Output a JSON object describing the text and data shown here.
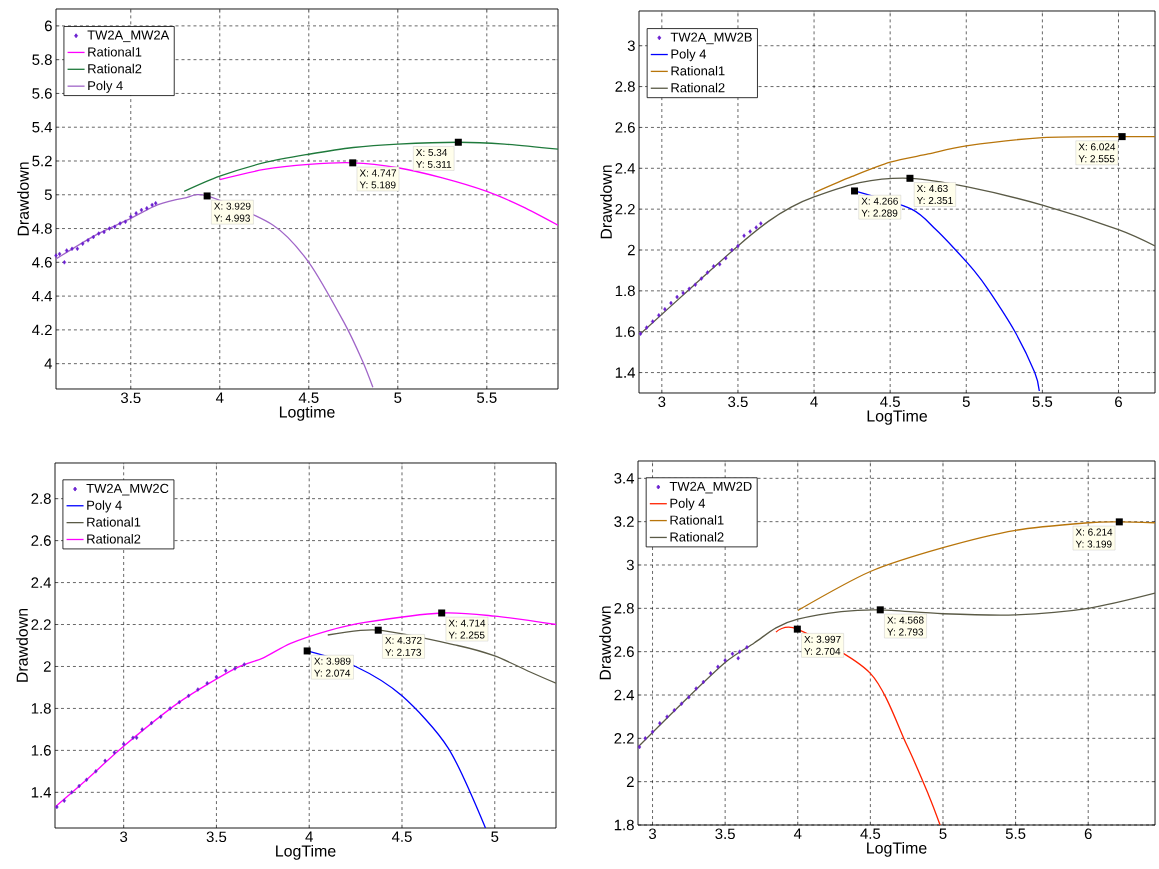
{
  "chart_data": [
    {
      "type": "line",
      "xlabel": "Logtime",
      "ylabel": "Drawdown",
      "xlim": [
        3.08,
        5.9
      ],
      "ylim": [
        3.85,
        6.1
      ],
      "xticks": [
        3.5,
        4,
        4.5,
        5,
        5.5
      ],
      "yticks": [
        4,
        4.2,
        4.4,
        4.6,
        4.8,
        5,
        5.2,
        5.4,
        5.6,
        5.8,
        6
      ],
      "grid": true,
      "legend": "top left",
      "series": [
        {
          "name": "TW2A_MW2A",
          "type": "scatter",
          "marker": "diamond",
          "color": "#6a1fd0",
          "x": [
            3.08,
            3.1,
            3.127,
            3.14,
            3.17,
            3.2,
            3.23,
            3.26,
            3.29,
            3.32,
            3.35,
            3.38,
            3.41,
            3.44,
            3.47,
            3.5,
            3.53,
            3.56,
            3.59,
            3.62,
            3.64
          ],
          "values": [
            4.64,
            4.65,
            4.6,
            4.67,
            4.68,
            4.68,
            4.71,
            4.73,
            4.75,
            4.77,
            4.78,
            4.8,
            4.81,
            4.83,
            4.84,
            4.87,
            4.89,
            4.91,
            4.92,
            4.94,
            4.95
          ]
        },
        {
          "name": "Rational1",
          "color": "#ff00ff",
          "x": [
            4.0,
            4.25,
            4.5,
            4.747,
            5.0,
            5.25,
            5.5,
            5.7,
            5.9
          ],
          "values": [
            5.09,
            5.15,
            5.18,
            5.189,
            5.16,
            5.1,
            5.02,
            4.93,
            4.82
          ]
        },
        {
          "name": "Rational2",
          "color": "#1f7a3c",
          "x": [
            3.8,
            4.0,
            4.25,
            4.5,
            4.75,
            5.0,
            5.34,
            5.6,
            5.9
          ],
          "values": [
            5.02,
            5.11,
            5.19,
            5.24,
            5.28,
            5.3,
            5.311,
            5.3,
            5.27
          ]
        },
        {
          "name": "Poly 4",
          "color": "#a066c8",
          "x": [
            3.08,
            3.3,
            3.5,
            3.65,
            3.8,
            3.929,
            4.3,
            4.5,
            4.7,
            4.8,
            4.86
          ],
          "values": [
            4.62,
            4.76,
            4.86,
            4.94,
            4.98,
            4.993,
            4.82,
            4.6,
            4.24,
            4.02,
            3.86
          ]
        }
      ],
      "annotations": [
        {
          "text": "X: 3.929",
          "x": 3.929,
          "y": 4.993
        },
        {
          "text": "Y: 4.993",
          "x": 3.929,
          "y": 4.993
        },
        {
          "text": "X: 4.747",
          "x": 4.747,
          "y": 5.189
        },
        {
          "text": "Y: 5.189",
          "x": 4.747,
          "y": 5.189
        },
        {
          "text": "X: 5.34",
          "x": 5.34,
          "y": 5.311
        },
        {
          "text": "Y: 5.311",
          "x": 5.34,
          "y": 5.311
        }
      ]
    },
    {
      "type": "line",
      "xlabel": "LogTime",
      "ylabel": "Drawdown",
      "xlim": [
        2.85,
        6.24
      ],
      "ylim": [
        1.3,
        3.17
      ],
      "xticks": [
        3,
        3.5,
        4,
        4.5,
        5,
        5.5,
        6
      ],
      "yticks": [
        1.4,
        1.6,
        1.8,
        2,
        2.2,
        2.4,
        2.6,
        2.8,
        3
      ],
      "grid": true,
      "legend": "top left",
      "series": [
        {
          "name": "TW2A_MW2B",
          "type": "scatter",
          "marker": "diamond",
          "color": "#6a1fd0",
          "x": [
            2.86,
            2.9,
            2.94,
            2.98,
            3.02,
            3.06,
            3.1,
            3.14,
            3.18,
            3.22,
            3.26,
            3.3,
            3.34,
            3.38,
            3.42,
            3.46,
            3.5,
            3.54,
            3.58,
            3.62,
            3.65
          ],
          "values": [
            1.59,
            1.62,
            1.65,
            1.68,
            1.71,
            1.74,
            1.77,
            1.79,
            1.81,
            1.83,
            1.86,
            1.89,
            1.92,
            1.93,
            1.96,
            2.0,
            2.02,
            2.07,
            2.09,
            2.11,
            2.13
          ]
        },
        {
          "name": "Poly 4",
          "color": "#0000ff",
          "x": [
            4.266,
            4.64,
            4.8,
            4.93,
            5.05,
            5.15,
            5.32,
            5.45,
            5.48
          ],
          "values": [
            2.289,
            2.2,
            2.1,
            2.0,
            1.9,
            1.8,
            1.6,
            1.4,
            1.31
          ]
        },
        {
          "name": "Rational1",
          "color": "#b8750b",
          "x": [
            4.0,
            4.25,
            4.5,
            4.75,
            5.0,
            5.5,
            6.024,
            6.24
          ],
          "values": [
            2.28,
            2.36,
            2.43,
            2.47,
            2.51,
            2.55,
            2.555,
            2.555
          ]
        },
        {
          "name": "Rational2",
          "color": "#5a5a46",
          "x": [
            2.86,
            3.2,
            3.5,
            3.7,
            3.85,
            4.0,
            4.3,
            4.63,
            5.0,
            5.5,
            6.0,
            6.24
          ],
          "values": [
            1.59,
            1.82,
            2.02,
            2.14,
            2.21,
            2.26,
            2.33,
            2.351,
            2.31,
            2.22,
            2.1,
            2.02
          ]
        }
      ],
      "annotations": [
        {
          "text": "X: 4.266",
          "x": 4.266,
          "y": 2.289
        },
        {
          "text": "Y: 2.289",
          "x": 4.266,
          "y": 2.289
        },
        {
          "text": "X: 4.63",
          "x": 4.63,
          "y": 2.351
        },
        {
          "text": "Y: 2.351",
          "x": 4.63,
          "y": 2.351
        },
        {
          "text": "X: 6.024",
          "x": 6.024,
          "y": 2.555
        },
        {
          "text": "Y: 2.555",
          "x": 6.024,
          "y": 2.555
        }
      ]
    },
    {
      "type": "line",
      "xlabel": "LogTime",
      "ylabel": "Drawdown",
      "xlim": [
        2.63,
        5.33
      ],
      "ylim": [
        1.23,
        2.97
      ],
      "xticks": [
        3,
        3.5,
        4,
        4.5,
        5
      ],
      "yticks": [
        1.4,
        1.6,
        1.8,
        2,
        2.2,
        2.4,
        2.6,
        2.8
      ],
      "grid": true,
      "legend": "top left",
      "series": [
        {
          "name": "TW2A_MW2C",
          "type": "scatter",
          "marker": "diamond",
          "color": "#6a1fd0",
          "x": [
            2.64,
            2.68,
            2.72,
            2.76,
            2.8,
            2.85,
            2.9,
            2.95,
            3.0,
            3.05,
            3.07,
            3.1,
            3.15,
            3.2,
            3.25,
            3.3,
            3.35,
            3.4,
            3.45,
            3.5,
            3.55,
            3.6,
            3.65
          ],
          "values": [
            1.33,
            1.36,
            1.4,
            1.43,
            1.46,
            1.5,
            1.55,
            1.59,
            1.63,
            1.66,
            1.66,
            1.7,
            1.73,
            1.76,
            1.8,
            1.83,
            1.86,
            1.89,
            1.92,
            1.95,
            1.98,
            1.99,
            2.01
          ]
        },
        {
          "name": "Poly 4",
          "color": "#0000ff",
          "x": [
            3.989,
            4.25,
            4.5,
            4.75,
            4.95
          ],
          "values": [
            2.074,
            2.0,
            1.86,
            1.61,
            1.23
          ]
        },
        {
          "name": "Rational1",
          "color": "#5a5a46",
          "x": [
            4.1,
            4.372,
            4.8,
            5.0,
            5.2,
            5.33
          ],
          "values": [
            2.15,
            2.173,
            2.1,
            2.05,
            1.97,
            1.92
          ]
        },
        {
          "name": "Rational2",
          "color": "#ff00ff",
          "x": [
            2.63,
            2.8,
            3.0,
            3.3,
            3.6,
            3.75,
            3.9,
            4.1,
            4.3,
            4.714,
            5.0,
            5.33
          ],
          "values": [
            1.33,
            1.46,
            1.62,
            1.83,
            1.99,
            2.04,
            2.11,
            2.17,
            2.21,
            2.255,
            2.24,
            2.2
          ]
        }
      ],
      "annotations": [
        {
          "text": "X: 3.989",
          "x": 3.989,
          "y": 2.074
        },
        {
          "text": "Y: 2.074",
          "x": 3.989,
          "y": 2.074
        },
        {
          "text": "X: 4.372",
          "x": 4.372,
          "y": 2.173
        },
        {
          "text": "Y: 2.173",
          "x": 4.372,
          "y": 2.173
        },
        {
          "text": "X: 4.714",
          "x": 4.714,
          "y": 2.255
        },
        {
          "text": "Y: 2.255",
          "x": 4.714,
          "y": 2.255
        }
      ]
    },
    {
      "type": "line",
      "xlabel": "LogTime",
      "ylabel": "Drawdown",
      "xlim": [
        2.9,
        6.46
      ],
      "ylim": [
        1.8,
        3.48
      ],
      "xticks": [
        3,
        3.5,
        4,
        4.5,
        5,
        5.5,
        6
      ],
      "yticks": [
        1.8,
        2,
        2.2,
        2.4,
        2.6,
        2.8,
        3,
        3.2,
        3.4
      ],
      "grid": true,
      "legend": "top left",
      "series": [
        {
          "name": "TW2A_MW2D",
          "type": "scatter",
          "marker": "diamond",
          "color": "#6a1fd0",
          "x": [
            2.91,
            2.95,
            3.0,
            3.05,
            3.1,
            3.15,
            3.2,
            3.25,
            3.3,
            3.35,
            3.4,
            3.45,
            3.5,
            3.55,
            3.59,
            3.6,
            3.65
          ],
          "values": [
            2.16,
            2.2,
            2.23,
            2.27,
            2.3,
            2.33,
            2.36,
            2.39,
            2.43,
            2.46,
            2.5,
            2.53,
            2.56,
            2.59,
            2.57,
            2.6,
            2.62
          ]
        },
        {
          "name": "Poly 4",
          "color": "#ff2200",
          "x": [
            3.85,
            3.997,
            4.5,
            4.75,
            4.9,
            4.98
          ],
          "values": [
            2.69,
            2.704,
            2.5,
            2.17,
            1.94,
            1.8
          ]
        },
        {
          "name": "Rational1",
          "color": "#b8750b",
          "x": [
            4.0,
            4.5,
            5.0,
            5.5,
            6.0,
            6.214,
            6.46
          ],
          "values": [
            2.79,
            2.97,
            3.08,
            3.16,
            3.195,
            3.199,
            3.195
          ]
        },
        {
          "name": "Rational2",
          "color": "#5a5a46",
          "x": [
            2.9,
            3.2,
            3.5,
            3.7,
            3.85,
            4.0,
            4.3,
            4.568,
            5.0,
            5.5,
            6.0,
            6.46
          ],
          "values": [
            2.16,
            2.36,
            2.55,
            2.64,
            2.71,
            2.75,
            2.785,
            2.793,
            2.775,
            2.77,
            2.8,
            2.87
          ]
        }
      ],
      "annotations": [
        {
          "text": "X: 3.997",
          "x": 3.997,
          "y": 2.704
        },
        {
          "text": "Y: 2.704",
          "x": 3.997,
          "y": 2.704
        },
        {
          "text": "X: 4.568",
          "x": 4.568,
          "y": 2.793
        },
        {
          "text": "Y: 2.793",
          "x": 4.568,
          "y": 2.793
        },
        {
          "text": "X: 6.214",
          "x": 6.214,
          "y": 3.199
        },
        {
          "text": "Y: 3.199",
          "x": 6.214,
          "y": 3.199
        }
      ]
    }
  ]
}
